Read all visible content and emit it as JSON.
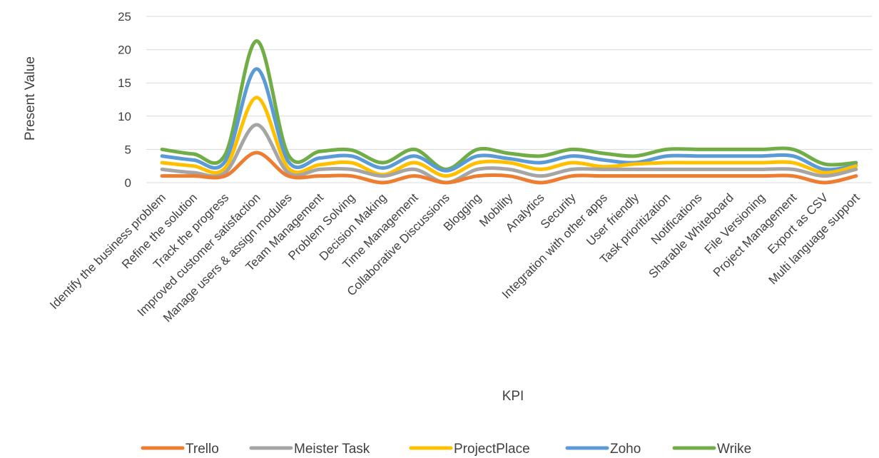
{
  "chart_data": {
    "type": "line",
    "title": "",
    "xlabel": "KPI",
    "ylabel": "Present Value",
    "ylim": [
      0,
      25
    ],
    "yticks": [
      0,
      5,
      10,
      15,
      20,
      25
    ],
    "grid": true,
    "legend_position": "bottom",
    "smooth": true,
    "stacked": true,
    "categories": [
      "Identify the business problem",
      "Refine the solution",
      "Track the progress",
      "Improved customer satisfaction",
      "Manage users & assign modules",
      "Team Management",
      "Problem Solving",
      "Decision Making",
      "Time Management",
      "Collaborative Discussions",
      "Blogging",
      "Mobility",
      "Analytics",
      "Security",
      "Integration with other apps",
      "User friendly",
      "Task prioritization",
      "Notifications",
      "Sharable Whiteboard",
      "File Versioning",
      "Project Management",
      "Export as CSV",
      "Multi language support"
    ],
    "series": [
      {
        "name": "Trello",
        "color": "#ED7D31",
        "values": [
          1,
          1,
          1,
          4.5,
          1,
          1,
          1,
          0,
          1,
          0,
          1,
          1,
          0,
          1,
          1,
          1,
          1,
          1,
          1,
          1,
          1,
          0,
          1
        ]
      },
      {
        "name": "Meister Task",
        "color": "#A5A5A5",
        "values": [
          2,
          1.5,
          1.5,
          8.7,
          1.5,
          2,
          2,
          1,
          2,
          0,
          2,
          2,
          1,
          2,
          2,
          2,
          2,
          2,
          2,
          2,
          2,
          1,
          2
        ]
      },
      {
        "name": "ProjectPlace",
        "color": "#FFC000",
        "values": [
          3,
          2.5,
          2.2,
          12.8,
          2.2,
          2.7,
          3,
          1.2,
          3,
          1,
          3,
          3,
          2,
          3,
          2.4,
          2.8,
          3,
          3,
          3,
          3,
          3,
          1.5,
          2.5
        ]
      },
      {
        "name": "Zoho",
        "color": "#5B9BD5",
        "values": [
          4,
          3.4,
          3.2,
          17.1,
          3.2,
          3.7,
          4,
          2.2,
          4,
          1.8,
          4,
          3.6,
          3,
          4,
          3.4,
          3,
          4,
          4,
          4,
          4,
          4,
          2,
          2.6
        ]
      },
      {
        "name": "Wrike",
        "color": "#70AD47",
        "values": [
          5,
          4.3,
          4.2,
          21.3,
          4.2,
          4.7,
          4.9,
          3,
          5,
          2,
          5,
          4.4,
          4,
          5,
          4.4,
          4,
          5,
          5,
          5,
          5,
          5,
          2.8,
          3
        ]
      }
    ]
  }
}
